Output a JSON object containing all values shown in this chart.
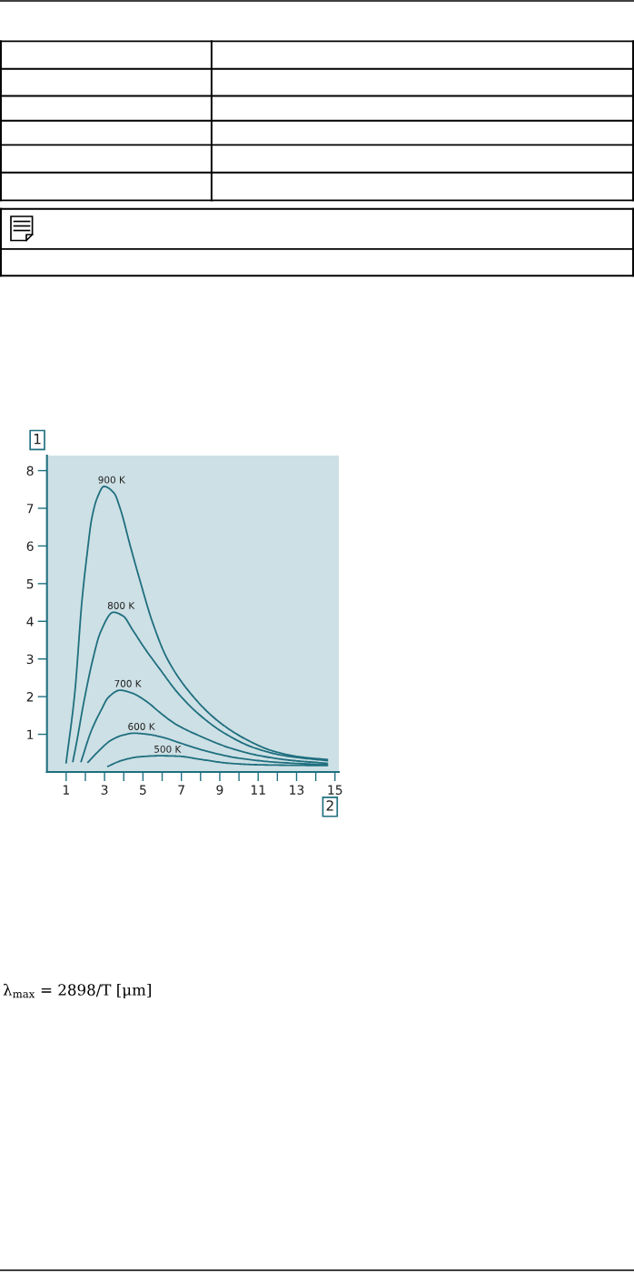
{
  "chart_data": {
    "type": "line",
    "xlabel": "2",
    "ylabel": "1",
    "xlim": [
      0,
      15.2
    ],
    "ylim": [
      0,
      8.4
    ],
    "xticks": [
      1,
      {
        "value": 2,
        "label": null
      },
      3,
      {
        "value": 4,
        "label": null
      },
      5,
      {
        "value": 6,
        "label": null
      },
      7,
      {
        "value": 8,
        "label": null
      },
      9,
      {
        "value": 10,
        "label": null
      },
      11,
      {
        "value": 12,
        "label": null
      },
      13,
      {
        "value": 14,
        "label": null
      },
      15
    ],
    "yticks": [
      1,
      2,
      3,
      4,
      5,
      6,
      7,
      8
    ],
    "grid": false,
    "marker": "none",
    "line_style": "solid",
    "annotations": [
      "λ$_{max}$ = 2898/T [μm]"
    ],
    "series": [
      {
        "name": "900 K",
        "color": "#1f6f7f",
        "x": [
          1.0,
          1.45,
          1.83,
          2.1,
          2.33,
          2.62,
          2.97,
          3.5,
          3.81,
          4.34,
          4.89,
          5.48,
          6.27,
          7.62,
          8.89,
          10.32,
          11.75,
          13.18,
          14.6
        ],
        "values": [
          0.25,
          2.1,
          4.58,
          5.83,
          6.72,
          7.28,
          7.58,
          7.4,
          7.0,
          6.0,
          5.0,
          4.0,
          3.0,
          2.0,
          1.36,
          0.88,
          0.56,
          0.4,
          0.33
        ]
      },
      {
        "name": "800 K",
        "color": "#1f6f7f",
        "x": [
          1.35,
          1.55,
          1.9,
          2.38,
          2.78,
          3.46,
          3.97,
          4.45,
          5.08,
          5.88,
          6.83,
          7.94,
          9.21,
          10.8,
          12.4,
          14.6
        ],
        "values": [
          0.28,
          0.8,
          1.8,
          2.97,
          3.7,
          4.24,
          4.14,
          3.78,
          3.29,
          2.73,
          2.09,
          1.52,
          1.04,
          0.64,
          0.43,
          0.3
        ]
      },
      {
        "name": "700 K",
        "color": "#1f6f7f",
        "x": [
          1.78,
          2.3,
          2.86,
          3.18,
          3.81,
          4.45,
          5.24,
          5.88,
          6.67,
          7.94,
          9.52,
          11.1,
          12.7,
          14.6
        ],
        "values": [
          0.28,
          1.08,
          1.68,
          1.97,
          2.17,
          2.09,
          1.85,
          1.58,
          1.28,
          0.96,
          0.64,
          0.43,
          0.31,
          0.23
        ]
      },
      {
        "name": "600 K",
        "color": "#1f6f7f",
        "x": [
          2.14,
          2.7,
          3.33,
          3.97,
          4.52,
          5.24,
          6.03,
          6.99,
          8.26,
          9.84,
          11.9,
          14.6
        ],
        "values": [
          0.26,
          0.56,
          0.84,
          0.98,
          1.03,
          1.0,
          0.92,
          0.76,
          0.56,
          0.38,
          0.26,
          0.19
        ]
      },
      {
        "name": "500 K",
        "color": "#1f6f7f",
        "x": [
          3.18,
          3.81,
          4.76,
          5.88,
          6.83,
          7.94,
          9.52,
          11.1,
          14.6
        ],
        "values": [
          0.15,
          0.29,
          0.4,
          0.43,
          0.42,
          0.34,
          0.23,
          0.19,
          0.17
        ]
      }
    ]
  }
}
